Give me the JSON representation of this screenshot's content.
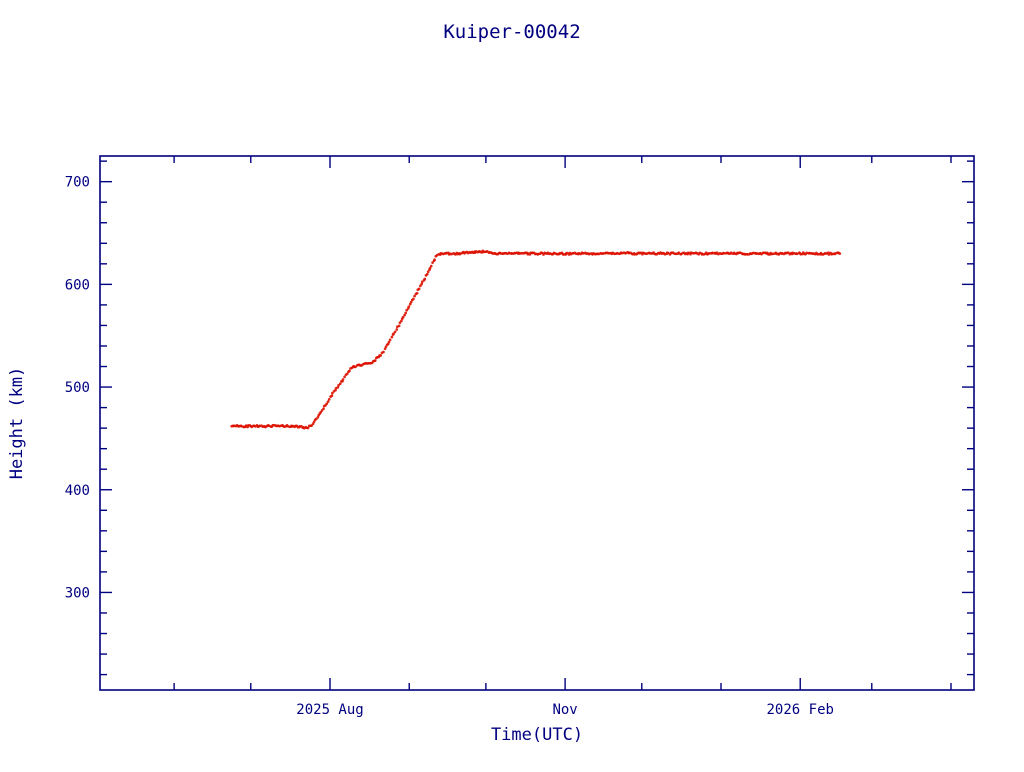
{
  "page": {
    "background": "#ffffff"
  },
  "chart_data": {
    "type": "scatter",
    "title": "Kuiper-00042",
    "xlabel": "Time(UTC)",
    "ylabel": "Height (km)",
    "axis_color": "#000080",
    "point_color": "#dd1100",
    "legend": "none",
    "grid": false,
    "x_unit": "days",
    "x_range_days": [
      2,
      344
    ],
    "x_ticks": [
      {
        "day": 92,
        "label": "2025 Aug"
      },
      {
        "day": 184,
        "label": "Nov"
      },
      {
        "day": 276,
        "label": "2026 Feb"
      }
    ],
    "x_minor_tick_days": [
      31,
      61,
      92,
      123,
      153,
      184,
      214,
      245,
      276,
      304,
      335
    ],
    "ylim": [
      205,
      725
    ],
    "y_ticks": [
      300,
      400,
      500,
      600,
      700
    ],
    "y_minor_step": 20,
    "series_description": "Satellite height vs time: flat ~462 km until late July 2025, orbit raise with brief plateau ~520-524 km, reaching ~630 km by mid September 2025, then constant ~630 km through mid February 2026",
    "points_anchor": [
      [
        53.5,
        462
      ],
      [
        62,
        462
      ],
      [
        70,
        462
      ],
      [
        76,
        462
      ],
      [
        79.5,
        461.5
      ],
      [
        82.5,
        460.5
      ],
      [
        84.5,
        461.5
      ],
      [
        88,
        474
      ],
      [
        94,
        497
      ],
      [
        100.5,
        519
      ],
      [
        103,
        521
      ],
      [
        108.5,
        524
      ],
      [
        112,
        531
      ],
      [
        118,
        556
      ],
      [
        126,
        592
      ],
      [
        130,
        610
      ],
      [
        133.5,
        627
      ],
      [
        135.5,
        630
      ],
      [
        142,
        630
      ],
      [
        147.5,
        631.5
      ],
      [
        151,
        632
      ],
      [
        155,
        631
      ],
      [
        158,
        630
      ],
      [
        170,
        630
      ],
      [
        185,
        630
      ],
      [
        200,
        630
      ],
      [
        205.5,
        630.5
      ],
      [
        207.5,
        631
      ],
      [
        210,
        630
      ],
      [
        225,
        630
      ],
      [
        240,
        630
      ],
      [
        255,
        630
      ],
      [
        270,
        630
      ],
      [
        285,
        630
      ],
      [
        291.5,
        630
      ]
    ],
    "sampling": {
      "step_days": 0.45,
      "y_jitter_km": 0.9,
      "x_jitter_days": 0.18,
      "dot_radius_px": 1.35
    }
  }
}
